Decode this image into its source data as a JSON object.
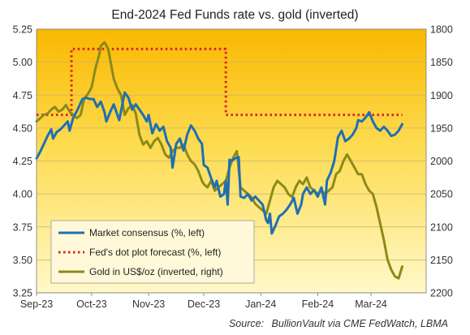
{
  "chart_data": {
    "type": "line",
    "title": "End-2024 Fed Funds rate vs. gold (inverted)",
    "source_prefix": "Source:",
    "source_text": "BullionVault via CME FedWatch, LBMA",
    "x_ticks": [
      "Sep-23",
      "Oct-23",
      "Nov-23",
      "Dec-23",
      "Jan-24",
      "Feb-24",
      "Mar-24"
    ],
    "x_tick_dates": [
      "2023-09-01",
      "2023-10-01",
      "2023-11-01",
      "2023-12-01",
      "2024-01-01",
      "2024-02-01",
      "2024-03-01"
    ],
    "xlim": [
      "2023-09-01",
      "2024-03-31"
    ],
    "y_left": {
      "label": "",
      "lim": [
        3.25,
        5.25
      ],
      "ticks": [
        "3.25",
        "3.50",
        "3.75",
        "4.00",
        "4.25",
        "4.50",
        "4.75",
        "5.00",
        "5.25"
      ],
      "tick_values": [
        3.25,
        3.5,
        3.75,
        4.0,
        4.25,
        4.5,
        4.75,
        5.0,
        5.25
      ]
    },
    "y_right": {
      "label": "",
      "inverted": true,
      "lim": [
        1800,
        2200
      ],
      "ticks": [
        "1800",
        "1850",
        "1900",
        "1950",
        "2000",
        "2050",
        "2100",
        "2150",
        "2200"
      ],
      "tick_values": [
        1800,
        1850,
        1900,
        1950,
        2000,
        2050,
        2100,
        2150,
        2200
      ]
    },
    "grid": true,
    "legend_position": "bottom-left",
    "series": [
      {
        "name": "Market consensus (%, left)",
        "axis": "left",
        "color": "#1f6fb2",
        "style": "solid",
        "points": [
          [
            "2023-09-01",
            4.27
          ],
          [
            "2023-09-03",
            4.32
          ],
          [
            "2023-09-05",
            4.38
          ],
          [
            "2023-09-07",
            4.44
          ],
          [
            "2023-09-09",
            4.49
          ],
          [
            "2023-09-10",
            4.42
          ],
          [
            "2023-09-12",
            4.47
          ],
          [
            "2023-09-14",
            4.49
          ],
          [
            "2023-09-16",
            4.52
          ],
          [
            "2023-09-18",
            4.55
          ],
          [
            "2023-09-19",
            4.48
          ],
          [
            "2023-09-21",
            4.58
          ],
          [
            "2023-09-23",
            4.63
          ],
          [
            "2023-09-24",
            4.66
          ],
          [
            "2023-09-26",
            4.72
          ],
          [
            "2023-09-28",
            4.73
          ],
          [
            "2023-09-30",
            4.72
          ],
          [
            "2023-10-02",
            4.72
          ],
          [
            "2023-10-04",
            4.66
          ],
          [
            "2023-10-06",
            4.7
          ],
          [
            "2023-10-08",
            4.62
          ],
          [
            "2023-10-09",
            4.55
          ],
          [
            "2023-10-11",
            4.62
          ],
          [
            "2023-10-13",
            4.68
          ],
          [
            "2023-10-15",
            4.6
          ],
          [
            "2023-10-16",
            4.56
          ],
          [
            "2023-10-18",
            4.7
          ],
          [
            "2023-10-19",
            4.77
          ],
          [
            "2023-10-21",
            4.73
          ],
          [
            "2023-10-23",
            4.64
          ],
          [
            "2023-10-25",
            4.68
          ],
          [
            "2023-10-27",
            4.64
          ],
          [
            "2023-10-29",
            4.6
          ],
          [
            "2023-10-31",
            4.55
          ],
          [
            "2023-11-01",
            4.6
          ],
          [
            "2023-11-03",
            4.46
          ],
          [
            "2023-11-05",
            4.53
          ],
          [
            "2023-11-07",
            4.48
          ],
          [
            "2023-11-09",
            4.51
          ],
          [
            "2023-11-11",
            4.4
          ],
          [
            "2023-11-13",
            4.35
          ],
          [
            "2023-11-14",
            4.2
          ],
          [
            "2023-11-16",
            4.38
          ],
          [
            "2023-11-18",
            4.42
          ],
          [
            "2023-11-20",
            4.33
          ],
          [
            "2023-11-22",
            4.45
          ],
          [
            "2023-11-24",
            4.52
          ],
          [
            "2023-11-26",
            4.48
          ],
          [
            "2023-11-28",
            4.42
          ],
          [
            "2023-11-30",
            4.38
          ],
          [
            "2023-12-01",
            4.22
          ],
          [
            "2023-12-03",
            4.2
          ],
          [
            "2023-12-05",
            4.12
          ],
          [
            "2023-12-07",
            4.05
          ],
          [
            "2023-12-08",
            4.1
          ],
          [
            "2023-12-10",
            3.98
          ],
          [
            "2023-12-12",
            4.0
          ],
          [
            "2023-12-13",
            4.1
          ],
          [
            "2023-12-14",
            3.92
          ],
          [
            "2023-12-15",
            4.26
          ],
          [
            "2023-12-16",
            4.25
          ],
          [
            "2023-12-18",
            4.27
          ],
          [
            "2023-12-20",
            4.28
          ],
          [
            "2023-12-21",
            3.98
          ],
          [
            "2023-12-23",
            3.97
          ],
          [
            "2023-12-25",
            4.0
          ],
          [
            "2023-12-27",
            3.95
          ],
          [
            "2023-12-29",
            3.98
          ],
          [
            "2023-12-31",
            3.95
          ],
          [
            "2024-01-02",
            3.92
          ],
          [
            "2024-01-04",
            3.8
          ],
          [
            "2024-01-05",
            3.78
          ],
          [
            "2024-01-06",
            3.85
          ],
          [
            "2024-01-07",
            3.7
          ],
          [
            "2024-01-09",
            3.76
          ],
          [
            "2024-01-11",
            3.83
          ],
          [
            "2024-01-13",
            3.85
          ],
          [
            "2024-01-15",
            3.88
          ],
          [
            "2024-01-17",
            3.92
          ],
          [
            "2024-01-19",
            3.97
          ],
          [
            "2024-01-21",
            3.85
          ],
          [
            "2024-01-23",
            3.92
          ],
          [
            "2024-01-24",
            4.0
          ],
          [
            "2024-01-26",
            4.05
          ],
          [
            "2024-01-28",
            4.0
          ],
          [
            "2024-01-30",
            4.03
          ],
          [
            "2024-02-01",
            3.98
          ],
          [
            "2024-02-03",
            4.05
          ],
          [
            "2024-02-05",
            3.92
          ],
          [
            "2024-02-06",
            4.1
          ],
          [
            "2024-02-08",
            4.16
          ],
          [
            "2024-02-10",
            4.25
          ],
          [
            "2024-02-12",
            4.43
          ],
          [
            "2024-02-14",
            4.48
          ],
          [
            "2024-02-16",
            4.4
          ],
          [
            "2024-02-18",
            4.42
          ],
          [
            "2024-02-20",
            4.45
          ],
          [
            "2024-02-22",
            4.5
          ],
          [
            "2024-02-23",
            4.56
          ],
          [
            "2024-02-25",
            4.55
          ],
          [
            "2024-02-27",
            4.58
          ],
          [
            "2024-02-29",
            4.62
          ],
          [
            "2024-03-02",
            4.55
          ],
          [
            "2024-03-04",
            4.5
          ],
          [
            "2024-03-06",
            4.48
          ],
          [
            "2024-03-08",
            4.51
          ],
          [
            "2024-03-10",
            4.48
          ],
          [
            "2024-03-12",
            4.44
          ],
          [
            "2024-03-14",
            4.45
          ],
          [
            "2024-03-16",
            4.48
          ],
          [
            "2024-03-18",
            4.53
          ]
        ]
      },
      {
        "name": "Fed's dot plot forecast (%, left)",
        "axis": "left",
        "color": "#dd2222",
        "style": "dotted",
        "points": [
          [
            "2023-09-01",
            4.6
          ],
          [
            "2023-09-20",
            4.6
          ],
          [
            "2023-09-20",
            5.1
          ],
          [
            "2023-12-13",
            5.1
          ],
          [
            "2023-12-13",
            4.6
          ],
          [
            "2024-03-18",
            4.6
          ]
        ]
      },
      {
        "name": "Gold in US$/oz (inverted, right)",
        "axis": "right",
        "color": "#8b8a1a",
        "style": "solid",
        "points": [
          [
            "2023-09-01",
            1940
          ],
          [
            "2023-09-03",
            1935
          ],
          [
            "2023-09-05",
            1930
          ],
          [
            "2023-09-07",
            1928
          ],
          [
            "2023-09-09",
            1922
          ],
          [
            "2023-09-11",
            1918
          ],
          [
            "2023-09-13",
            1925
          ],
          [
            "2023-09-15",
            1922
          ],
          [
            "2023-09-17",
            1915
          ],
          [
            "2023-09-19",
            1925
          ],
          [
            "2023-09-21",
            1930
          ],
          [
            "2023-09-23",
            1935
          ],
          [
            "2023-09-25",
            1930
          ],
          [
            "2023-09-27",
            1905
          ],
          [
            "2023-09-29",
            1898
          ],
          [
            "2023-10-01",
            1888
          ],
          [
            "2023-10-03",
            1860
          ],
          [
            "2023-10-05",
            1840
          ],
          [
            "2023-10-06",
            1825
          ],
          [
            "2023-10-08",
            1820
          ],
          [
            "2023-10-10",
            1830
          ],
          [
            "2023-10-11",
            1845
          ],
          [
            "2023-10-13",
            1875
          ],
          [
            "2023-10-15",
            1890
          ],
          [
            "2023-10-17",
            1900
          ],
          [
            "2023-10-19",
            1930
          ],
          [
            "2023-10-21",
            1920
          ],
          [
            "2023-10-23",
            1915
          ],
          [
            "2023-10-25",
            1928
          ],
          [
            "2023-10-27",
            1960
          ],
          [
            "2023-10-29",
            1975
          ],
          [
            "2023-10-31",
            1970
          ],
          [
            "2023-11-02",
            1980
          ],
          [
            "2023-11-04",
            1970
          ],
          [
            "2023-11-06",
            1965
          ],
          [
            "2023-11-08",
            1975
          ],
          [
            "2023-11-10",
            1990
          ],
          [
            "2023-11-12",
            1995
          ],
          [
            "2023-11-14",
            1985
          ],
          [
            "2023-11-16",
            1980
          ],
          [
            "2023-11-18",
            1980
          ],
          [
            "2023-11-20",
            1975
          ],
          [
            "2023-11-22",
            1990
          ],
          [
            "2023-11-24",
            2000
          ],
          [
            "2023-11-26",
            2005
          ],
          [
            "2023-11-28",
            2015
          ],
          [
            "2023-11-30",
            2030
          ],
          [
            "2023-12-01",
            2035
          ],
          [
            "2023-12-03",
            2040
          ],
          [
            "2023-12-05",
            2030
          ],
          [
            "2023-12-07",
            2045
          ],
          [
            "2023-12-09",
            2040
          ],
          [
            "2023-12-11",
            2035
          ],
          [
            "2023-12-13",
            2030
          ],
          [
            "2023-12-15",
            2010
          ],
          [
            "2023-12-17",
            1995
          ],
          [
            "2023-12-19",
            1985
          ],
          [
            "2023-12-21",
            2040
          ],
          [
            "2023-12-23",
            2045
          ],
          [
            "2023-12-25",
            2050
          ],
          [
            "2023-12-27",
            2055
          ],
          [
            "2023-12-29",
            2065
          ],
          [
            "2023-12-31",
            2070
          ],
          [
            "2024-01-02",
            2075
          ],
          [
            "2024-01-04",
            2080
          ],
          [
            "2024-01-06",
            2060
          ],
          [
            "2024-01-08",
            2040
          ],
          [
            "2024-01-10",
            2030
          ],
          [
            "2024-01-12",
            2035
          ],
          [
            "2024-01-14",
            2040
          ],
          [
            "2024-01-16",
            2050
          ],
          [
            "2024-01-18",
            2055
          ],
          [
            "2024-01-20",
            2040
          ],
          [
            "2024-01-22",
            2030
          ],
          [
            "2024-01-24",
            2035
          ],
          [
            "2024-01-26",
            2025
          ],
          [
            "2024-01-28",
            2040
          ],
          [
            "2024-01-30",
            2045
          ],
          [
            "2024-02-01",
            2050
          ],
          [
            "2024-02-03",
            2045
          ],
          [
            "2024-02-05",
            2050
          ],
          [
            "2024-02-07",
            2045
          ],
          [
            "2024-02-09",
            2040
          ],
          [
            "2024-02-11",
            2020
          ],
          [
            "2024-02-13",
            2015
          ],
          [
            "2024-02-15",
            2000
          ],
          [
            "2024-02-17",
            1990
          ],
          [
            "2024-02-19",
            2000
          ],
          [
            "2024-02-21",
            2010
          ],
          [
            "2024-02-23",
            2020
          ],
          [
            "2024-02-25",
            2020
          ],
          [
            "2024-02-27",
            2035
          ],
          [
            "2024-02-29",
            2045
          ],
          [
            "2024-03-02",
            2050
          ],
          [
            "2024-03-04",
            2070
          ],
          [
            "2024-03-06",
            2095
          ],
          [
            "2024-03-08",
            2120
          ],
          [
            "2024-03-10",
            2150
          ],
          [
            "2024-03-12",
            2165
          ],
          [
            "2024-03-14",
            2175
          ],
          [
            "2024-03-16",
            2178
          ],
          [
            "2024-03-18",
            2160
          ]
        ]
      }
    ]
  }
}
